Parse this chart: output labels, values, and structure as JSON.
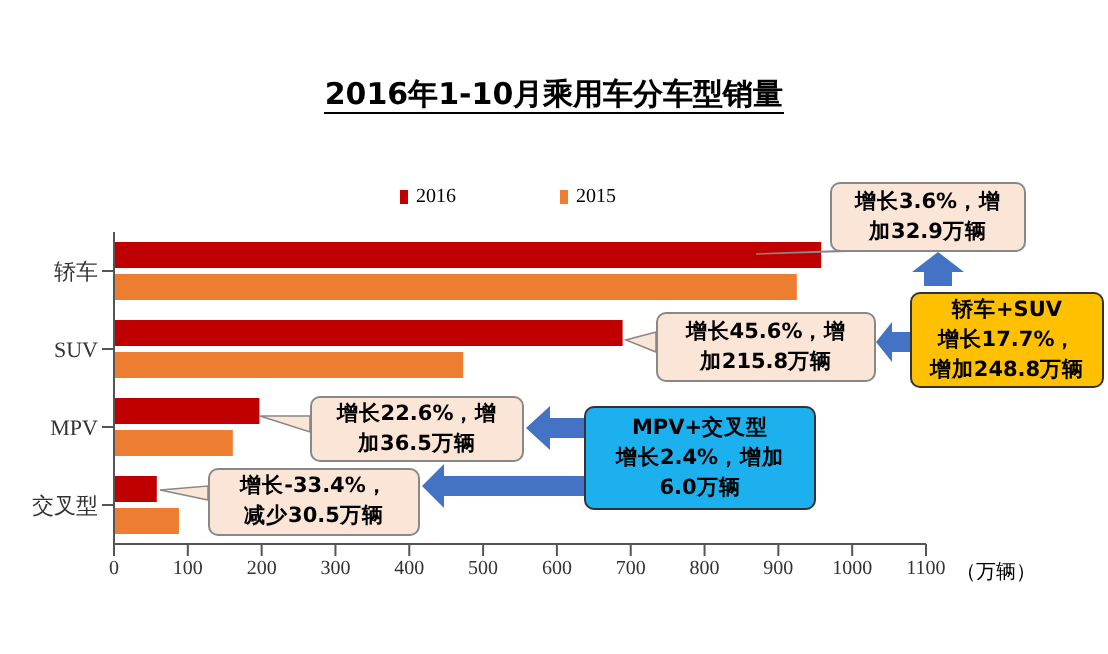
{
  "chart_data": {
    "type": "bar",
    "orientation": "horizontal",
    "title": "2016年1-10月乘用车分车型销量",
    "xlabel": "（万辆）",
    "categories": [
      "轿车",
      "SUV",
      "MPV",
      "交叉型"
    ],
    "series": [
      {
        "name": "2016",
        "color": "#c00000",
        "values": [
          958,
          689,
          197,
          58
        ]
      },
      {
        "name": "2015",
        "color": "#ed7d31",
        "values": [
          925,
          473,
          161,
          88
        ]
      }
    ],
    "xlim": [
      0,
      1100
    ],
    "xticks": [
      0,
      100,
      200,
      300,
      400,
      500,
      600,
      700,
      800,
      900,
      1000,
      1100
    ],
    "legend": "top",
    "grid": false,
    "annotations": [
      "增长3.6%，增加32.9万辆",
      "增长45.6%，增加215.8万辆",
      "增长22.6%，增加36.5万辆",
      "增长-33.4%，减少30.5万辆",
      "轿车+SUV增长17.7%，增加248.8万辆",
      "MPV+交叉型增长2.4%，增加6.0万辆"
    ]
  }
}
